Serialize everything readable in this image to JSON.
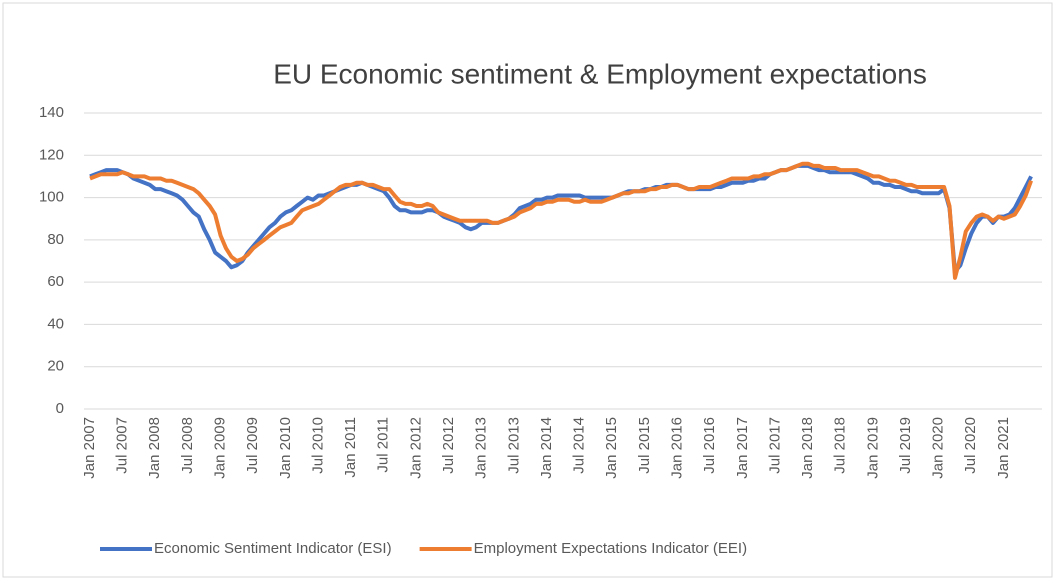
{
  "chart_data": {
    "type": "line",
    "title": "EU Economic sentiment & Employment expectations",
    "categories": [
      "Jan 2007",
      null,
      null,
      null,
      null,
      null,
      "Jul 2007",
      null,
      null,
      null,
      null,
      null,
      "Jan 2008",
      null,
      null,
      null,
      null,
      null,
      "Jul 2008",
      null,
      null,
      null,
      null,
      null,
      "Jan 2009",
      null,
      null,
      null,
      null,
      null,
      "Jul 2009",
      null,
      null,
      null,
      null,
      null,
      "Jan 2010",
      null,
      null,
      null,
      null,
      null,
      "Jul 2010",
      null,
      null,
      null,
      null,
      null,
      "Jan 2011",
      null,
      null,
      null,
      null,
      null,
      "Jul 2011",
      null,
      null,
      null,
      null,
      null,
      "Jan 2012",
      null,
      null,
      null,
      null,
      null,
      "Jul 2012",
      null,
      null,
      null,
      null,
      null,
      "Jan 2013",
      null,
      null,
      null,
      null,
      null,
      "Jul 2013",
      null,
      null,
      null,
      null,
      null,
      "Jan 2014",
      null,
      null,
      null,
      null,
      null,
      "Jul 2014",
      null,
      null,
      null,
      null,
      null,
      "Jan 2015",
      null,
      null,
      null,
      null,
      null,
      "Jul 2015",
      null,
      null,
      null,
      null,
      null,
      "Jan 2016",
      null,
      null,
      null,
      null,
      null,
      "Jul 2016",
      null,
      null,
      null,
      null,
      null,
      "Jan 2017",
      null,
      null,
      null,
      null,
      null,
      "Jul 2017",
      null,
      null,
      null,
      null,
      null,
      "Jan 2018",
      null,
      null,
      null,
      null,
      null,
      "Jul 2018",
      null,
      null,
      null,
      null,
      null,
      "Jan 2019",
      null,
      null,
      null,
      null,
      null,
      "Jul 2019",
      null,
      null,
      null,
      null,
      null,
      "Jan 2020",
      null,
      null,
      null,
      null,
      null,
      "Jul 2020",
      null,
      null,
      null,
      null,
      null,
      "Jan 2021",
      null,
      null,
      null,
      null,
      null
    ],
    "series": [
      {
        "name": "Economic Sentiment Indicator (ESI)",
        "color": "#4472c4",
        "values": [
          110,
          111,
          112,
          113,
          113,
          113,
          112,
          111,
          109,
          108,
          107,
          106,
          104,
          104,
          103,
          102,
          101,
          99,
          96,
          93,
          91,
          85,
          80,
          74,
          72,
          70,
          67,
          68,
          70,
          74,
          77,
          80,
          83,
          86,
          88,
          91,
          93,
          94,
          96,
          98,
          100,
          99,
          101,
          101,
          102,
          103,
          104,
          105,
          106,
          106,
          107,
          106,
          105,
          104,
          103,
          100,
          96,
          94,
          94,
          93,
          93,
          93,
          94,
          94,
          93,
          91,
          90,
          89,
          88,
          86,
          85,
          86,
          88,
          88,
          88,
          88,
          89,
          90,
          92,
          95,
          96,
          97,
          99,
          99,
          100,
          100,
          101,
          101,
          101,
          101,
          101,
          100,
          100,
          100,
          100,
          100,
          100,
          101,
          102,
          103,
          103,
          103,
          104,
          104,
          105,
          105,
          106,
          106,
          106,
          105,
          104,
          104,
          104,
          104,
          104,
          105,
          105,
          106,
          107,
          107,
          107,
          108,
          108,
          109,
          109,
          111,
          112,
          113,
          113,
          114,
          115,
          115,
          115,
          114,
          113,
          113,
          112,
          112,
          112,
          112,
          112,
          111,
          110,
          109,
          107,
          107,
          106,
          106,
          105,
          105,
          104,
          103,
          103,
          102,
          102,
          102,
          102,
          104,
          95,
          65,
          68,
          76,
          83,
          88,
          91,
          91,
          88,
          91,
          91,
          92,
          95,
          100,
          105,
          110
        ]
      },
      {
        "name": "Employment Expectations Indicator (EEI)",
        "color": "#ed7d31",
        "values": [
          109,
          110,
          111,
          111,
          111,
          111,
          112,
          111,
          110,
          110,
          110,
          109,
          109,
          109,
          108,
          108,
          107,
          106,
          105,
          104,
          102,
          99,
          96,
          92,
          82,
          76,
          72,
          70,
          71,
          73,
          76,
          78,
          80,
          82,
          84,
          86,
          87,
          88,
          91,
          94,
          95,
          96,
          97,
          99,
          101,
          103,
          105,
          106,
          106,
          107,
          107,
          106,
          106,
          105,
          104,
          104,
          101,
          98,
          97,
          97,
          96,
          96,
          97,
          96,
          93,
          92,
          91,
          90,
          89,
          89,
          89,
          89,
          89,
          89,
          88,
          88,
          89,
          90,
          91,
          93,
          94,
          95,
          97,
          97,
          98,
          98,
          99,
          99,
          99,
          98,
          98,
          99,
          98,
          98,
          98,
          99,
          100,
          101,
          102,
          102,
          103,
          103,
          103,
          104,
          104,
          105,
          105,
          106,
          106,
          105,
          104,
          104,
          105,
          105,
          105,
          106,
          107,
          108,
          109,
          109,
          109,
          109,
          110,
          110,
          111,
          111,
          112,
          113,
          113,
          114,
          115,
          116,
          116,
          115,
          115,
          114,
          114,
          114,
          113,
          113,
          113,
          113,
          112,
          111,
          110,
          110,
          109,
          108,
          108,
          107,
          106,
          106,
          105,
          105,
          105,
          105,
          105,
          105,
          96,
          62,
          72,
          84,
          88,
          91,
          92,
          91,
          89,
          91,
          90,
          91,
          92,
          96,
          101,
          108
        ]
      }
    ],
    "ylim": [
      0,
      140
    ],
    "yticks": [
      0,
      20,
      40,
      60,
      80,
      100,
      120,
      140
    ],
    "grid": true,
    "legend": "bottom"
  }
}
